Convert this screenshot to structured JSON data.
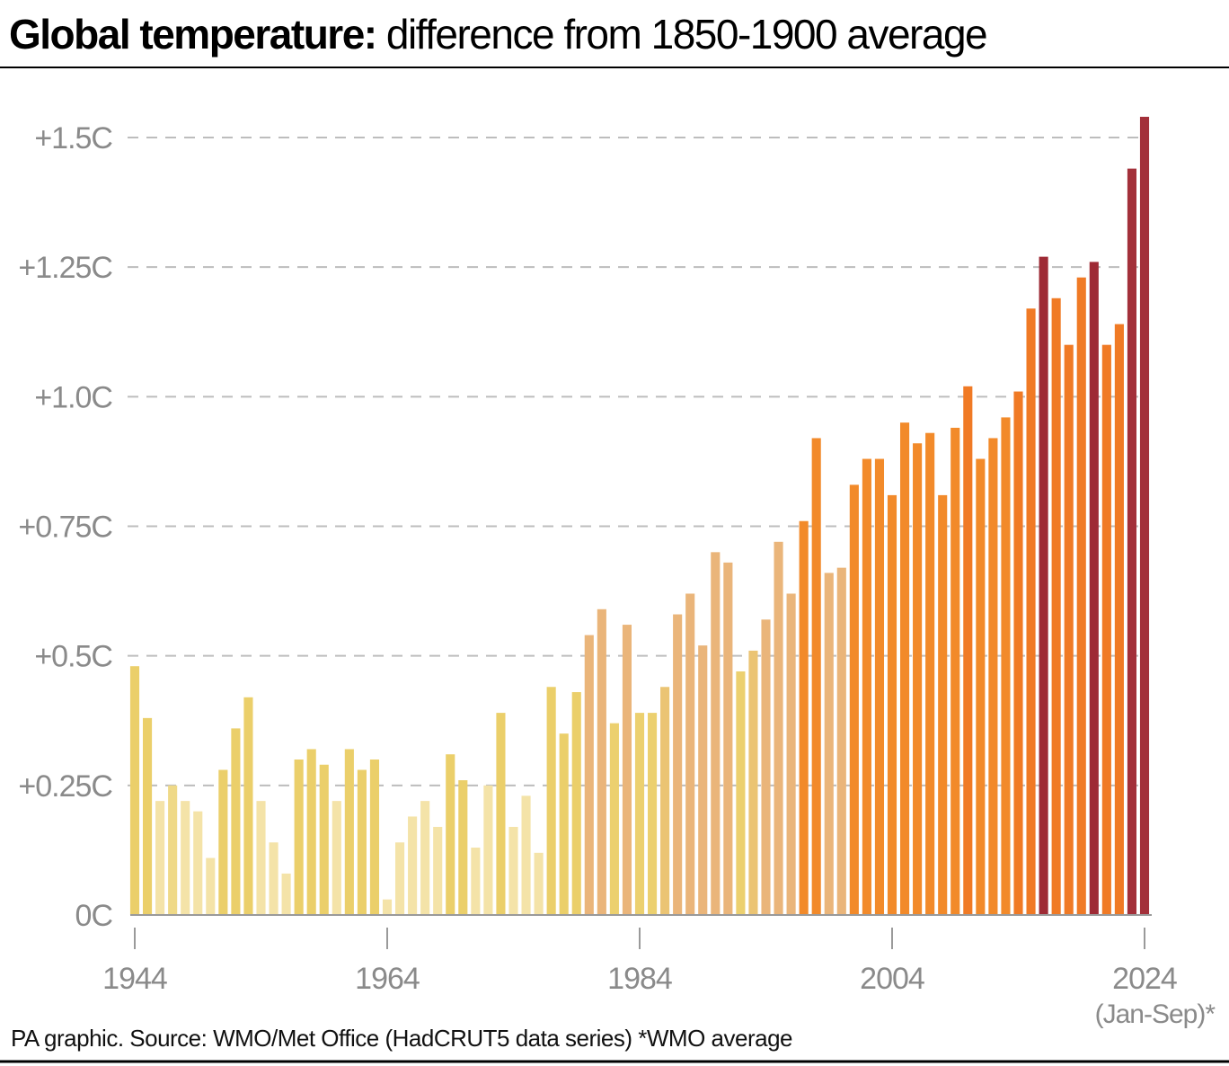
{
  "chart_data": {
    "type": "bar",
    "title_bold": "Global temperature:",
    "title": "difference from 1850-1900 average",
    "source": "PA graphic. Source: WMO/Met Office (HadCRUT5 data series) *WMO average",
    "x_note": "(Jan-Sep)*",
    "x": [
      1944,
      1945,
      1946,
      1947,
      1948,
      1949,
      1950,
      1951,
      1952,
      1953,
      1954,
      1955,
      1956,
      1957,
      1958,
      1959,
      1960,
      1961,
      1962,
      1963,
      1964,
      1965,
      1966,
      1967,
      1968,
      1969,
      1970,
      1971,
      1972,
      1973,
      1974,
      1975,
      1976,
      1977,
      1978,
      1979,
      1980,
      1981,
      1982,
      1983,
      1984,
      1985,
      1986,
      1987,
      1988,
      1989,
      1990,
      1991,
      1992,
      1993,
      1994,
      1995,
      1996,
      1997,
      1998,
      1999,
      2000,
      2001,
      2002,
      2003,
      2004,
      2005,
      2006,
      2007,
      2008,
      2009,
      2010,
      2011,
      2012,
      2013,
      2014,
      2015,
      2016,
      2017,
      2018,
      2019,
      2020,
      2021,
      2022,
      2023,
      2024
    ],
    "values": [
      0.48,
      0.38,
      0.22,
      0.25,
      0.22,
      0.2,
      0.11,
      0.28,
      0.36,
      0.42,
      0.22,
      0.14,
      0.08,
      0.3,
      0.32,
      0.29,
      0.22,
      0.32,
      0.28,
      0.3,
      0.03,
      0.14,
      0.19,
      0.22,
      0.17,
      0.31,
      0.26,
      0.13,
      0.25,
      0.39,
      0.17,
      0.23,
      0.12,
      0.44,
      0.35,
      0.43,
      0.54,
      0.59,
      0.37,
      0.56,
      0.39,
      0.39,
      0.44,
      0.58,
      0.62,
      0.52,
      0.7,
      0.68,
      0.47,
      0.51,
      0.57,
      0.72,
      0.62,
      0.76,
      0.92,
      0.66,
      0.67,
      0.83,
      0.88,
      0.88,
      0.81,
      0.95,
      0.91,
      0.93,
      0.81,
      0.94,
      1.02,
      0.88,
      0.92,
      0.96,
      1.01,
      1.17,
      1.27,
      1.19,
      1.1,
      1.23,
      1.26,
      1.1,
      1.14,
      1.44,
      1.54
    ],
    "colors": [
      "#ebcf6a",
      "#ebcf6a",
      "#f4e3a8",
      "#efd987",
      "#f4e3a8",
      "#f4e3a8",
      "#f4e3a8",
      "#ebcf6a",
      "#ebcf6a",
      "#ebcf6a",
      "#f4e3a8",
      "#f4e3a8",
      "#f4e3a8",
      "#ebcf6a",
      "#ebcf6a",
      "#ebcf6a",
      "#f4e3a8",
      "#ebcf6a",
      "#ebcf6a",
      "#ebcf6a",
      "#f4e3a8",
      "#f4e3a8",
      "#f4e3a8",
      "#f4e3a8",
      "#f4e3a8",
      "#ebcf6a",
      "#ebcf6a",
      "#f4e3a8",
      "#f4e3a8",
      "#ebcf6a",
      "#f4e3a8",
      "#f4e3a8",
      "#f4e3a8",
      "#ebcf6a",
      "#ebcf6a",
      "#ebcf6a",
      "#eab57a",
      "#eab57a",
      "#ecd06f",
      "#eab57a",
      "#ecd06f",
      "#ecd06f",
      "#ebc473",
      "#eab57a",
      "#eab57a",
      "#eab57a",
      "#eab57a",
      "#eab57a",
      "#ecd06f",
      "#ebc473",
      "#eab57a",
      "#eab57a",
      "#eab57a",
      "#f28a2a",
      "#f28a2a",
      "#eab57a",
      "#eab57a",
      "#f28a2a",
      "#f28a2a",
      "#f28a2a",
      "#f28a2a",
      "#f28a2a",
      "#f28a2a",
      "#f28a2a",
      "#f28a2a",
      "#f28a2a",
      "#f07a25",
      "#f28a2a",
      "#f28a2a",
      "#f28a2a",
      "#f07a25",
      "#f07a25",
      "#9e2a35",
      "#f07a25",
      "#f07a25",
      "#f07a25",
      "#9e2a35",
      "#f07a25",
      "#f07a25",
      "#a3303a",
      "#a3303a"
    ],
    "xlim": [
      1944,
      2024
    ],
    "xticks": [
      1944,
      1964,
      1984,
      2004,
      2024
    ],
    "ylim": [
      0,
      1.5
    ],
    "yticks": [
      {
        "value": 0,
        "label": "0C"
      },
      {
        "value": 0.25,
        "label": "+0.25C"
      },
      {
        "value": 0.5,
        "label": "+0.5C"
      },
      {
        "value": 0.75,
        "label": "+0.75C"
      },
      {
        "value": 1.0,
        "label": "+1.0C"
      },
      {
        "value": 1.25,
        "label": "+1.25C"
      },
      {
        "value": 1.5,
        "label": "+1.5C"
      }
    ],
    "grid": true
  }
}
